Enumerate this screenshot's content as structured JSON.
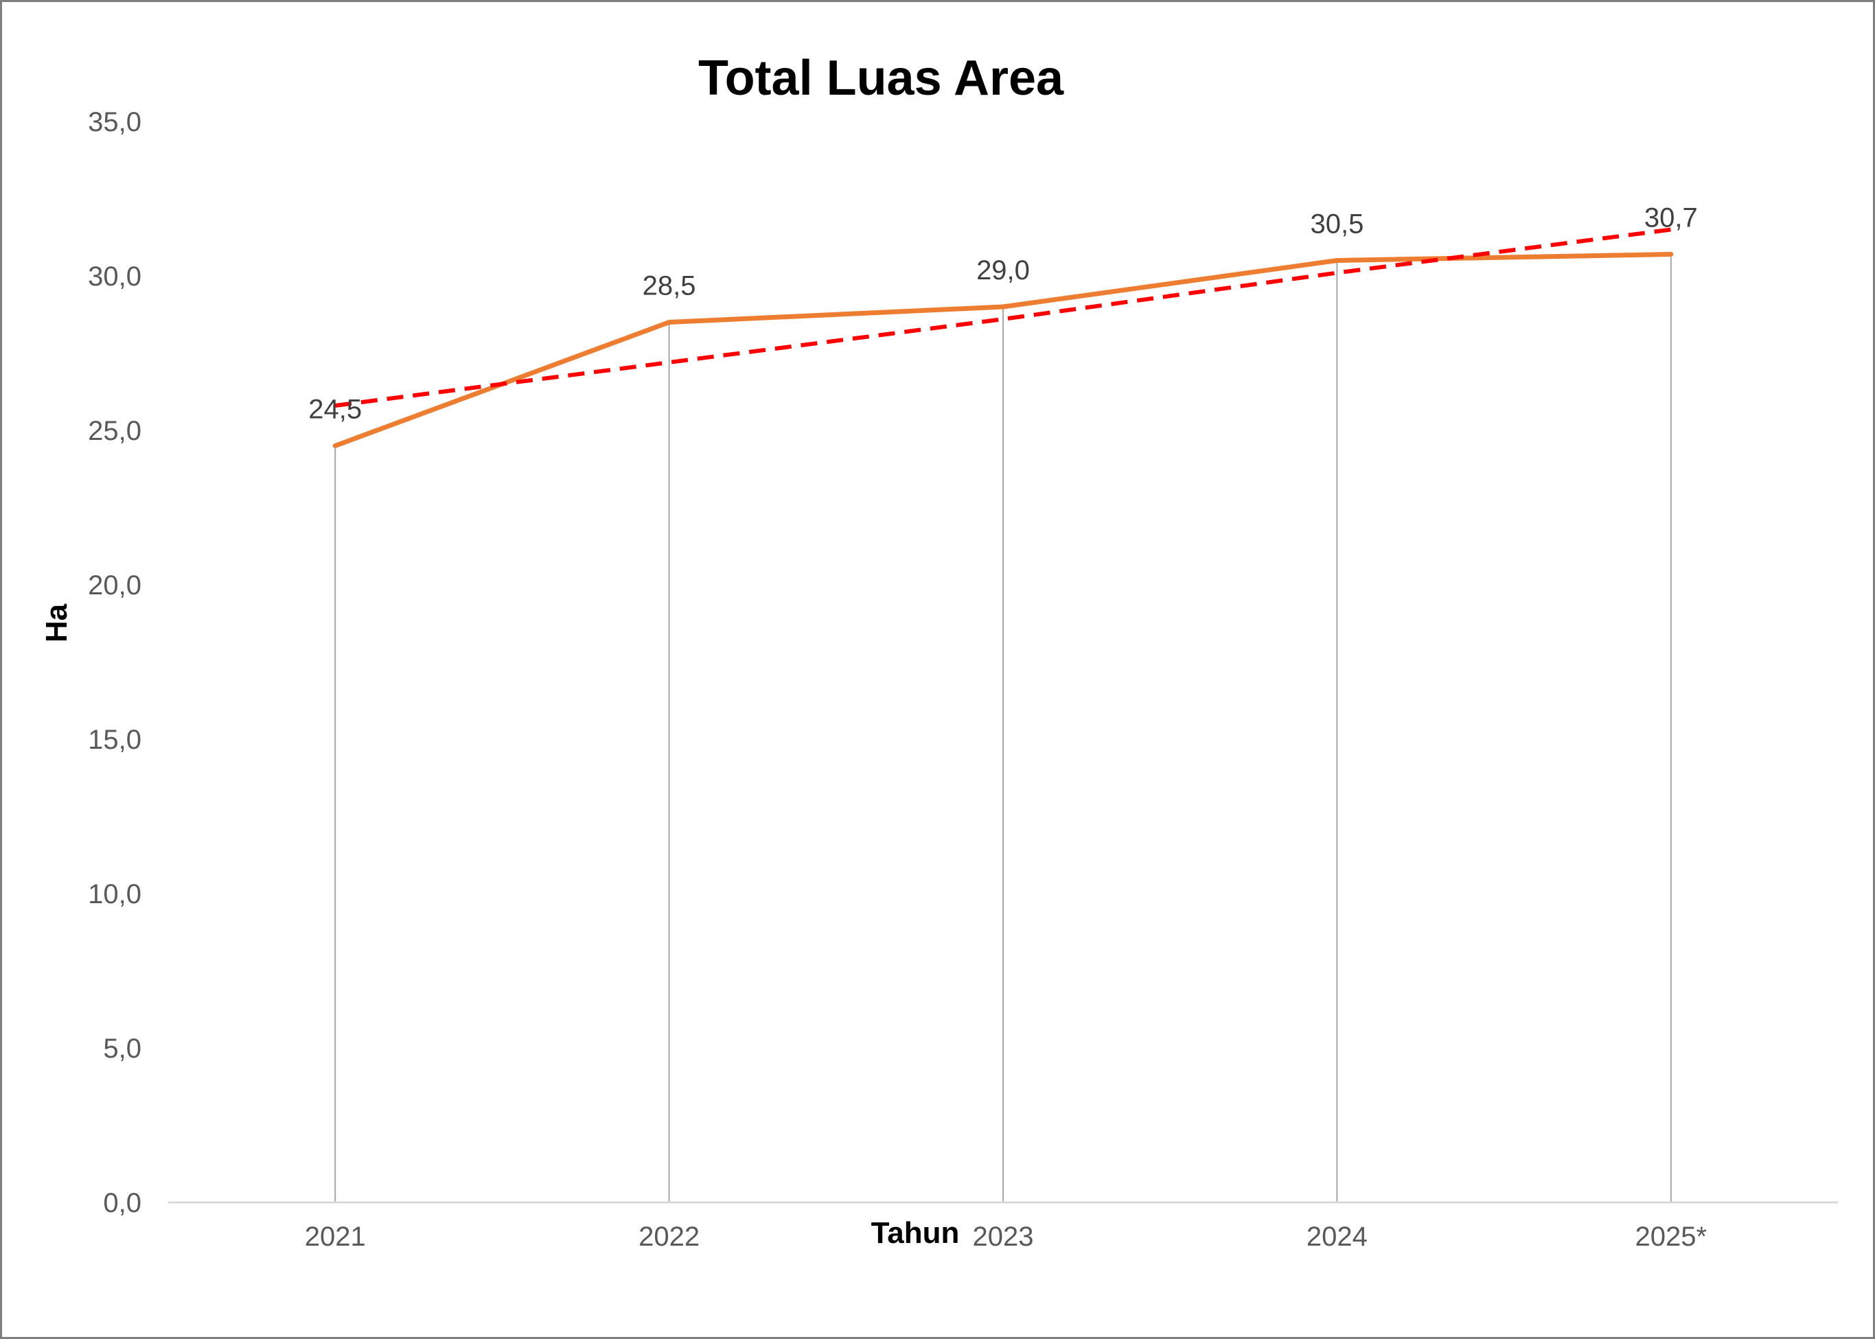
{
  "chart_data": {
    "type": "line",
    "title": "Total Luas Area",
    "xlabel": "Tahun",
    "ylabel": "Ha",
    "categories": [
      "2021",
      "2022",
      "2023",
      "2024",
      "2025*"
    ],
    "series": [
      {
        "values": [
          24.5,
          28.5,
          29.0,
          30.5,
          30.7
        ],
        "data_labels": [
          "24,5",
          "28,5",
          "29,0",
          "30,5",
          "30,7"
        ],
        "color": "#ED7D31",
        "line_style": "solid"
      },
      {
        "values": [
          25.8,
          27.2,
          28.6,
          30.1,
          31.5
        ],
        "color": "#FF0000",
        "line_style": "dashed",
        "kind": "linear trendline"
      }
    ],
    "ylim": [
      0,
      35
    ],
    "ytick_labels": [
      "0,0",
      "5,0",
      "10,0",
      "15,0",
      "20,0",
      "25,0",
      "30,0",
      "35,0"
    ],
    "ytick_values": [
      0,
      5,
      10,
      15,
      20,
      25,
      30,
      35
    ],
    "grid": "vertical drop lines at each category",
    "legend": "none",
    "colors": {
      "axis": "#d9d9d9",
      "drop_line": "#a6a6a6",
      "border": "#7f7f7f"
    }
  }
}
